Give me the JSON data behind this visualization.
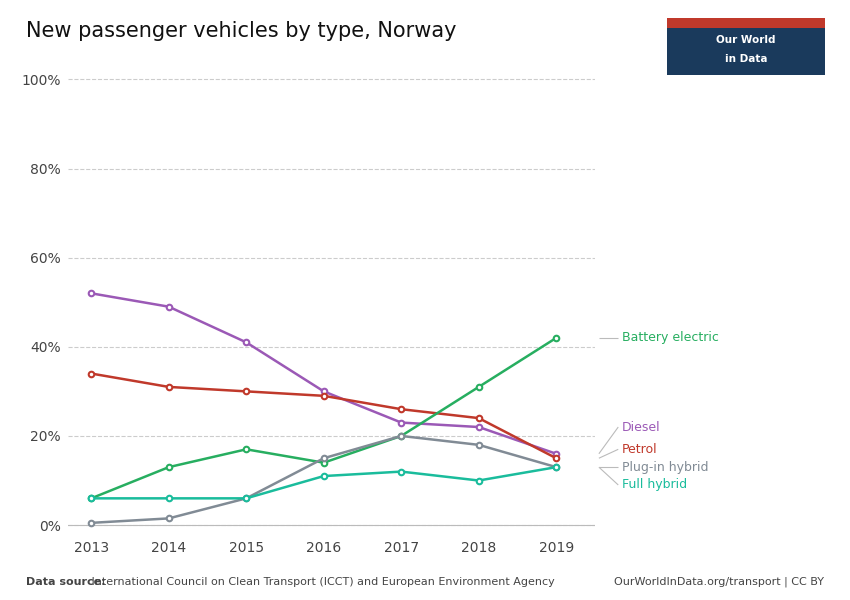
{
  "title": "New passenger vehicles by type, Norway",
  "years": [
    2013,
    2014,
    2015,
    2016,
    2017,
    2018,
    2019
  ],
  "series": {
    "Diesel": {
      "values": [
        52,
        49,
        41,
        30,
        23,
        22,
        16
      ],
      "color": "#9B59B6",
      "label_color": "#9B59B6"
    },
    "Petrol": {
      "values": [
        34,
        31,
        30,
        29,
        26,
        24,
        15
      ],
      "color": "#C0392B",
      "label_color": "#C0392B"
    },
    "Battery electric": {
      "values": [
        6,
        13,
        17,
        14,
        20,
        31,
        42
      ],
      "color": "#27AE60",
      "label_color": "#27AE60"
    },
    "Plug-in hybrid": {
      "values": [
        0.5,
        1.5,
        6,
        15,
        20,
        18,
        13
      ],
      "color": "#818B95",
      "label_color": "#818B95"
    },
    "Full hybrid": {
      "values": [
        6,
        6,
        6,
        11,
        12,
        10,
        13
      ],
      "color": "#1ABC9C",
      "label_color": "#1ABC9C"
    }
  },
  "ylim": [
    0,
    100
  ],
  "yticks": [
    0,
    20,
    40,
    60,
    80,
    100
  ],
  "ytick_labels": [
    "0%",
    "20%",
    "40%",
    "60%",
    "80%",
    "100%"
  ],
  "background_color": "#ffffff",
  "grid_color": "#cccccc",
  "source_text_bold": "Data source:",
  "source_text_normal": " International Council on Clean Transport (ICCT) and European Environment Agency",
  "credit_text": "OurWorldInData.org/transport | CC BY",
  "logo_bg": "#1a3a5c",
  "logo_text_1": "Our World",
  "logo_text_2": "in Data",
  "logo_red": "#C0392B",
  "right_labels": [
    {
      "name": "Battery electric",
      "y_data": 42,
      "y_label": 42
    },
    {
      "name": "Diesel",
      "y_data": 16,
      "y_label": 22
    },
    {
      "name": "Petrol",
      "y_data": 15,
      "y_label": 17
    },
    {
      "name": "Plug-in hybrid",
      "y_data": 13,
      "y_label": 13
    },
    {
      "name": "Full hybrid",
      "y_data": 13,
      "y_label": 9
    }
  ]
}
